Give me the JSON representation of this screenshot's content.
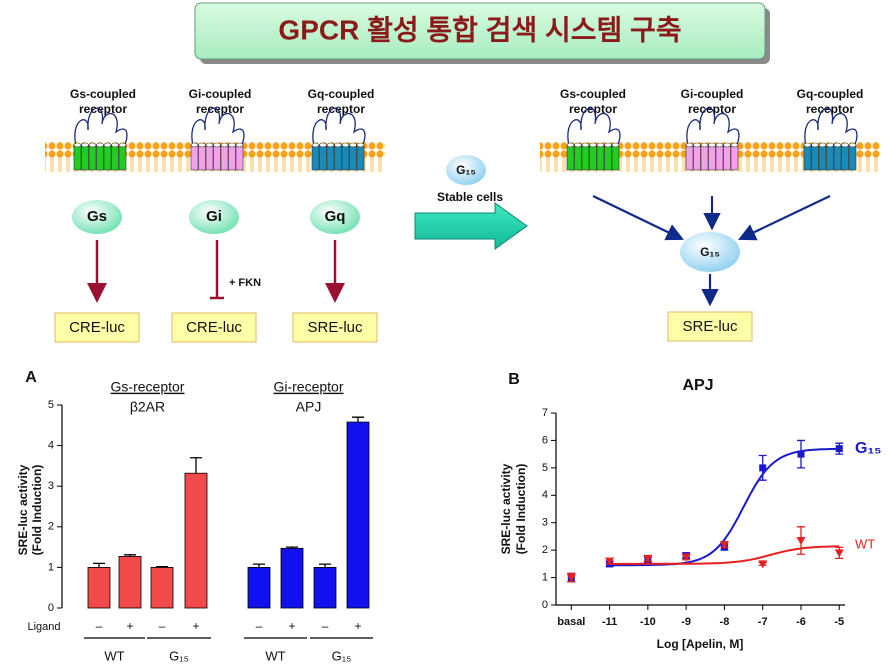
{
  "header": {
    "title": "GPCR 활성 통합 검색 시스템 구축"
  },
  "diagram": {
    "left": {
      "receptors": [
        {
          "label": [
            "Gs-coupled",
            "receptor"
          ],
          "g_protein": "Gs",
          "reporter": "CRE-luc"
        },
        {
          "label": [
            "Gi-coupled",
            "receptor"
          ],
          "g_protein": "Gi",
          "reporter": "CRE-luc",
          "note": "+ FKN"
        },
        {
          "label": [
            "Gq-coupled",
            "receptor"
          ],
          "g_protein": "Gq",
          "reporter": "SRE-luc"
        }
      ]
    },
    "middle": {
      "g_protein": "G₁₅",
      "label": "Stable cells"
    },
    "right": {
      "receptors": [
        [
          "Gs-coupled",
          "receptor"
        ],
        [
          "Gi-coupled",
          "receptor"
        ],
        [
          "Gq-coupled",
          "receptor"
        ]
      ],
      "g_protein": "G₁₅",
      "reporter": "SRE-luc"
    }
  },
  "chart_data": [
    {
      "type": "bar",
      "panel": "A",
      "y_label": [
        "SRE-luc activity",
        "(Fold Induction)"
      ],
      "x_row_label": "Ligand",
      "ylim": [
        0,
        5
      ],
      "yticks": [
        0,
        1,
        2,
        3,
        4,
        5
      ],
      "panels": [
        {
          "title": "Gs-receptor",
          "subtitle": "β2AR",
          "color": "#f24a4a",
          "categories": [
            "–",
            "+",
            "–",
            "+"
          ],
          "groups": [
            "WT",
            "G₁₅"
          ],
          "values": [
            1.0,
            1.27,
            1.0,
            3.32
          ],
          "errors": [
            0.1,
            0.04,
            0.02,
            0.38
          ]
        },
        {
          "title": "Gi-receptor",
          "subtitle": "APJ",
          "color": "#1212ee",
          "categories": [
            "–",
            "+",
            "–",
            "+"
          ],
          "groups": [
            "WT",
            "G₁₅"
          ],
          "values": [
            1.0,
            1.47,
            1.0,
            4.58
          ],
          "errors": [
            0.08,
            0.03,
            0.08,
            0.12
          ]
        }
      ]
    },
    {
      "type": "scatter",
      "panel": "B",
      "title": "APJ",
      "x_label": "Log [Apelin, M]",
      "y_label": [
        "SRE-luc activity",
        "(Fold Induction)"
      ],
      "xlim": [
        -12.4,
        -4.85
      ],
      "ylim": [
        0,
        7
      ],
      "xticks": [
        {
          "value": -12,
          "label": "basal"
        },
        -11,
        -10,
        -9,
        -8,
        -7,
        -6,
        -5
      ],
      "yticks": [
        0,
        1,
        2,
        3,
        4,
        5,
        6,
        7
      ],
      "x": [
        -12,
        -11,
        -10,
        -9,
        -8,
        -7,
        -6,
        -5
      ],
      "series": [
        {
          "name": "G₁₅",
          "color": "#1a1acc",
          "marker": "square",
          "values": [
            1.0,
            1.5,
            1.65,
            1.8,
            2.15,
            5.0,
            5.5,
            5.7
          ],
          "errors": [
            0.15,
            0.1,
            0.1,
            0.1,
            0.15,
            0.45,
            0.5,
            0.2
          ],
          "fit": {
            "bottom": 1.45,
            "top": 5.7,
            "log_ec50": -7.5,
            "hill": 1.1
          }
        },
        {
          "name": "WT",
          "color": "#e82020",
          "marker": "triangle-down",
          "values": [
            1.0,
            1.6,
            1.7,
            1.75,
            2.2,
            1.5,
            2.35,
            1.9
          ],
          "errors": [
            0.15,
            0.1,
            0.1,
            0.1,
            0.1,
            0.05,
            0.5,
            0.2
          ],
          "fit": {
            "bottom": 1.5,
            "top": 2.15,
            "log_ec50": -6.8,
            "hill": 1.0
          }
        }
      ]
    }
  ]
}
